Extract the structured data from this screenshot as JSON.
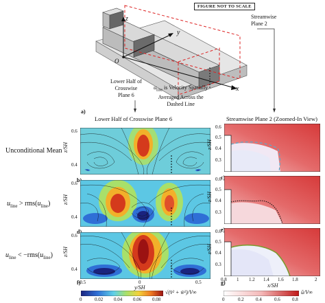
{
  "schematic": {
    "not_to_scale": "FIGURE NOT TO SCALE",
    "streamwise_plane_label": "Streamwise\nPlane 2",
    "lower_half_label": "Lower Half of\nCrosswise\nPlane 6",
    "uline_note_var": "u",
    "uline_note_sub": "line",
    "uline_note_text": " is Velocity Spatially\nAveraged Across the\nDashed Line",
    "axis_z": "z",
    "axis_y": "y",
    "axis_x": "x",
    "origin": "O",
    "panel_a": "a)"
  },
  "columns": {
    "left_title": "Lower Half of Crosswise Plane 6",
    "right_title": "Streamwise Plane 2 (Zoomed-In View)"
  },
  "rows": [
    {
      "label": "Unconditional Mean",
      "left_tag": "b)",
      "right_tag": "c)"
    },
    {
      "label": "u_line > rms(u_line)",
      "left_tag": "d)",
      "right_tag": "e)"
    },
    {
      "label": "u_line < −rms(u_line)",
      "left_tag": "f)",
      "right_tag": "g)"
    }
  ],
  "row_label_parts": {
    "u": "u",
    "line": "line",
    "gt": " > rms(",
    "lt": " < −rms(",
    "close": ")"
  },
  "axes": {
    "left_ylabel": "z/SH",
    "right_ylabel": "z/SH",
    "left_xlabel": "y/SH",
    "right_xlabel": "x/SH",
    "yticks": [
      "0.6",
      "0.4"
    ],
    "right_yticks": [
      "0.6",
      "0.5",
      "0.4",
      "0.3"
    ],
    "left_xticks": [
      "-0.5",
      "0",
      "0.5"
    ],
    "right_xticks": [
      "0.8",
      "1",
      "1.2",
      "1.4",
      "1.6",
      "1.8",
      "2"
    ]
  },
  "colorbars": {
    "left_ticks": [
      "0",
      "0.02",
      "0.04",
      "0.06",
      "0.08"
    ],
    "left_label": "√(v̄² + w̄²)/V∞",
    "right_ticks": [
      "0",
      "0.2",
      "0.4",
      "0.6",
      "0.8"
    ],
    "right_label": "ū/V∞"
  },
  "colors": {
    "jet_low": "#1f3fa8",
    "jet_high": "#c81e1e",
    "red_high": "#d63a3a",
    "cyan_dash": "#5fa8c8",
    "olive_line": "#7d9a2e",
    "dotted_black": "#111111"
  }
}
